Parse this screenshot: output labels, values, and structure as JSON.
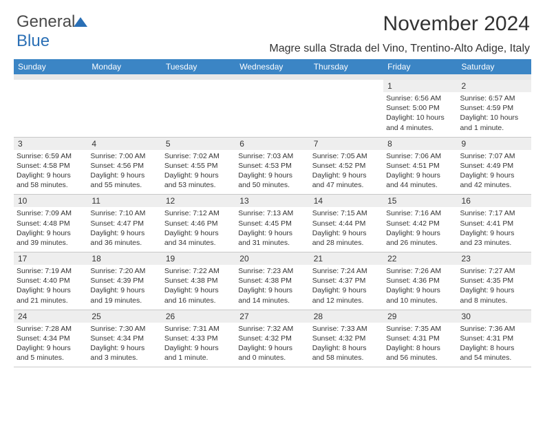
{
  "logo": {
    "part1": "General",
    "part2": "Blue"
  },
  "title": "November 2024",
  "location": "Magre sulla Strada del Vino, Trentino-Alto Adige, Italy",
  "colors": {
    "header_bg": "#3b85c5",
    "header_text": "#ffffff",
    "daynum_bg": "#eeeeee",
    "text": "#333333",
    "border": "#c8c8c8",
    "spacer_bg": "#e8e8e8",
    "logo_blue": "#2a6fb5"
  },
  "typography": {
    "title_fontsize": 30,
    "location_fontsize": 16,
    "header_fontsize": 12,
    "daynum_fontsize": 12,
    "info_fontsize": 10.5
  },
  "weekdays": [
    "Sunday",
    "Monday",
    "Tuesday",
    "Wednesday",
    "Thursday",
    "Friday",
    "Saturday"
  ],
  "weeks": [
    [
      {
        "empty": true
      },
      {
        "empty": true
      },
      {
        "empty": true
      },
      {
        "empty": true
      },
      {
        "empty": true
      },
      {
        "day": "1",
        "sunrise": "Sunrise: 6:56 AM",
        "sunset": "Sunset: 5:00 PM",
        "daylight1": "Daylight: 10 hours",
        "daylight2": "and 4 minutes."
      },
      {
        "day": "2",
        "sunrise": "Sunrise: 6:57 AM",
        "sunset": "Sunset: 4:59 PM",
        "daylight1": "Daylight: 10 hours",
        "daylight2": "and 1 minute."
      }
    ],
    [
      {
        "day": "3",
        "sunrise": "Sunrise: 6:59 AM",
        "sunset": "Sunset: 4:58 PM",
        "daylight1": "Daylight: 9 hours",
        "daylight2": "and 58 minutes."
      },
      {
        "day": "4",
        "sunrise": "Sunrise: 7:00 AM",
        "sunset": "Sunset: 4:56 PM",
        "daylight1": "Daylight: 9 hours",
        "daylight2": "and 55 minutes."
      },
      {
        "day": "5",
        "sunrise": "Sunrise: 7:02 AM",
        "sunset": "Sunset: 4:55 PM",
        "daylight1": "Daylight: 9 hours",
        "daylight2": "and 53 minutes."
      },
      {
        "day": "6",
        "sunrise": "Sunrise: 7:03 AM",
        "sunset": "Sunset: 4:53 PM",
        "daylight1": "Daylight: 9 hours",
        "daylight2": "and 50 minutes."
      },
      {
        "day": "7",
        "sunrise": "Sunrise: 7:05 AM",
        "sunset": "Sunset: 4:52 PM",
        "daylight1": "Daylight: 9 hours",
        "daylight2": "and 47 minutes."
      },
      {
        "day": "8",
        "sunrise": "Sunrise: 7:06 AM",
        "sunset": "Sunset: 4:51 PM",
        "daylight1": "Daylight: 9 hours",
        "daylight2": "and 44 minutes."
      },
      {
        "day": "9",
        "sunrise": "Sunrise: 7:07 AM",
        "sunset": "Sunset: 4:49 PM",
        "daylight1": "Daylight: 9 hours",
        "daylight2": "and 42 minutes."
      }
    ],
    [
      {
        "day": "10",
        "sunrise": "Sunrise: 7:09 AM",
        "sunset": "Sunset: 4:48 PM",
        "daylight1": "Daylight: 9 hours",
        "daylight2": "and 39 minutes."
      },
      {
        "day": "11",
        "sunrise": "Sunrise: 7:10 AM",
        "sunset": "Sunset: 4:47 PM",
        "daylight1": "Daylight: 9 hours",
        "daylight2": "and 36 minutes."
      },
      {
        "day": "12",
        "sunrise": "Sunrise: 7:12 AM",
        "sunset": "Sunset: 4:46 PM",
        "daylight1": "Daylight: 9 hours",
        "daylight2": "and 34 minutes."
      },
      {
        "day": "13",
        "sunrise": "Sunrise: 7:13 AM",
        "sunset": "Sunset: 4:45 PM",
        "daylight1": "Daylight: 9 hours",
        "daylight2": "and 31 minutes."
      },
      {
        "day": "14",
        "sunrise": "Sunrise: 7:15 AM",
        "sunset": "Sunset: 4:44 PM",
        "daylight1": "Daylight: 9 hours",
        "daylight2": "and 28 minutes."
      },
      {
        "day": "15",
        "sunrise": "Sunrise: 7:16 AM",
        "sunset": "Sunset: 4:42 PM",
        "daylight1": "Daylight: 9 hours",
        "daylight2": "and 26 minutes."
      },
      {
        "day": "16",
        "sunrise": "Sunrise: 7:17 AM",
        "sunset": "Sunset: 4:41 PM",
        "daylight1": "Daylight: 9 hours",
        "daylight2": "and 23 minutes."
      }
    ],
    [
      {
        "day": "17",
        "sunrise": "Sunrise: 7:19 AM",
        "sunset": "Sunset: 4:40 PM",
        "daylight1": "Daylight: 9 hours",
        "daylight2": "and 21 minutes."
      },
      {
        "day": "18",
        "sunrise": "Sunrise: 7:20 AM",
        "sunset": "Sunset: 4:39 PM",
        "daylight1": "Daylight: 9 hours",
        "daylight2": "and 19 minutes."
      },
      {
        "day": "19",
        "sunrise": "Sunrise: 7:22 AM",
        "sunset": "Sunset: 4:38 PM",
        "daylight1": "Daylight: 9 hours",
        "daylight2": "and 16 minutes."
      },
      {
        "day": "20",
        "sunrise": "Sunrise: 7:23 AM",
        "sunset": "Sunset: 4:38 PM",
        "daylight1": "Daylight: 9 hours",
        "daylight2": "and 14 minutes."
      },
      {
        "day": "21",
        "sunrise": "Sunrise: 7:24 AM",
        "sunset": "Sunset: 4:37 PM",
        "daylight1": "Daylight: 9 hours",
        "daylight2": "and 12 minutes."
      },
      {
        "day": "22",
        "sunrise": "Sunrise: 7:26 AM",
        "sunset": "Sunset: 4:36 PM",
        "daylight1": "Daylight: 9 hours",
        "daylight2": "and 10 minutes."
      },
      {
        "day": "23",
        "sunrise": "Sunrise: 7:27 AM",
        "sunset": "Sunset: 4:35 PM",
        "daylight1": "Daylight: 9 hours",
        "daylight2": "and 8 minutes."
      }
    ],
    [
      {
        "day": "24",
        "sunrise": "Sunrise: 7:28 AM",
        "sunset": "Sunset: 4:34 PM",
        "daylight1": "Daylight: 9 hours",
        "daylight2": "and 5 minutes."
      },
      {
        "day": "25",
        "sunrise": "Sunrise: 7:30 AM",
        "sunset": "Sunset: 4:34 PM",
        "daylight1": "Daylight: 9 hours",
        "daylight2": "and 3 minutes."
      },
      {
        "day": "26",
        "sunrise": "Sunrise: 7:31 AM",
        "sunset": "Sunset: 4:33 PM",
        "daylight1": "Daylight: 9 hours",
        "daylight2": "and 1 minute."
      },
      {
        "day": "27",
        "sunrise": "Sunrise: 7:32 AM",
        "sunset": "Sunset: 4:32 PM",
        "daylight1": "Daylight: 9 hours",
        "daylight2": "and 0 minutes."
      },
      {
        "day": "28",
        "sunrise": "Sunrise: 7:33 AM",
        "sunset": "Sunset: 4:32 PM",
        "daylight1": "Daylight: 8 hours",
        "daylight2": "and 58 minutes."
      },
      {
        "day": "29",
        "sunrise": "Sunrise: 7:35 AM",
        "sunset": "Sunset: 4:31 PM",
        "daylight1": "Daylight: 8 hours",
        "daylight2": "and 56 minutes."
      },
      {
        "day": "30",
        "sunrise": "Sunrise: 7:36 AM",
        "sunset": "Sunset: 4:31 PM",
        "daylight1": "Daylight: 8 hours",
        "daylight2": "and 54 minutes."
      }
    ]
  ]
}
